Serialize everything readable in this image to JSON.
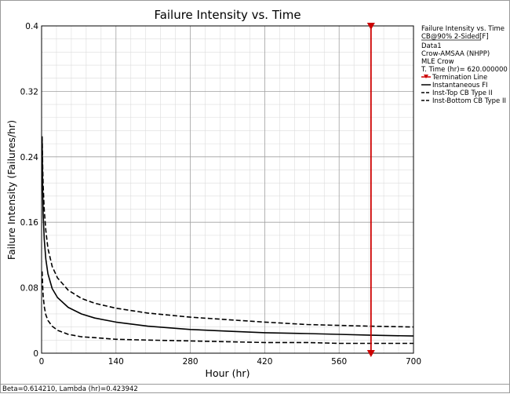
{
  "chart_data": {
    "type": "line",
    "title": "Failure Intensity vs. Time",
    "xlabel": "Hour (hr)",
    "ylabel": "Failure Intensity (Failures/hr)",
    "xlim": [
      0,
      700
    ],
    "ylim": [
      0,
      0.4
    ],
    "x_ticks": [
      "0",
      "140",
      "280",
      "420",
      "560",
      "700"
    ],
    "y_ticks": [
      "0",
      "0.08",
      "0.16",
      "0.24",
      "0.32",
      "0.4"
    ],
    "grid": true,
    "legend_position": "right",
    "series": [
      {
        "name": "Instantaneous FI",
        "style": "solid",
        "x": [
          1,
          2,
          3,
          5,
          8,
          12,
          20,
          30,
          50,
          75,
          100,
          140,
          200,
          280,
          350,
          420,
          500,
          560,
          620,
          700
        ],
        "y": [
          0.26,
          0.198,
          0.17,
          0.139,
          0.115,
          0.097,
          0.079,
          0.068,
          0.056,
          0.048,
          0.043,
          0.038,
          0.033,
          0.029,
          0.027,
          0.025,
          0.024,
          0.023,
          0.022,
          0.021
        ]
      },
      {
        "name": "Inst-Top CB Type II",
        "style": "dashed",
        "x": [
          1,
          2,
          3,
          5,
          8,
          12,
          20,
          30,
          50,
          75,
          100,
          140,
          200,
          280,
          350,
          420,
          500,
          560,
          620,
          700
        ],
        "y": [
          0.265,
          0.228,
          0.205,
          0.175,
          0.15,
          0.128,
          0.106,
          0.092,
          0.077,
          0.067,
          0.061,
          0.055,
          0.049,
          0.044,
          0.041,
          0.038,
          0.035,
          0.034,
          0.033,
          0.032
        ]
      },
      {
        "name": "Inst-Bottom CB Type II",
        "style": "dashed",
        "x": [
          1,
          2,
          3,
          5,
          8,
          12,
          20,
          30,
          50,
          75,
          100,
          140,
          200,
          280,
          350,
          420,
          500,
          560,
          620,
          700
        ],
        "y": [
          0.1,
          0.082,
          0.07,
          0.057,
          0.047,
          0.04,
          0.033,
          0.028,
          0.023,
          0.02,
          0.019,
          0.017,
          0.016,
          0.015,
          0.014,
          0.013,
          0.013,
          0.012,
          0.012,
          0.012
        ]
      }
    ],
    "termination_line": {
      "name": "Termination Line",
      "x": 620,
      "color": "#cc0000"
    },
    "colors": {
      "curves": "#000000",
      "termination": "#cc0000",
      "grid_major": "#a0a0a0",
      "grid_minor": "#dcdcdc"
    }
  },
  "legend": {
    "header": "Failure Intensity vs. Time",
    "subheader": "CB@90% 2-Sided[F]",
    "info": [
      "Data1",
      "Crow-AMSAA (NHPP)",
      "MLE Crow",
      "T. Time (hr)= 620.000000"
    ],
    "items": [
      "Termination Line",
      "Instantaneous FI",
      "Inst-Top CB Type II",
      "Inst-Bottom CB Type II"
    ]
  },
  "footer": "Beta=0.614210, Lambda (hr)=0.423942"
}
